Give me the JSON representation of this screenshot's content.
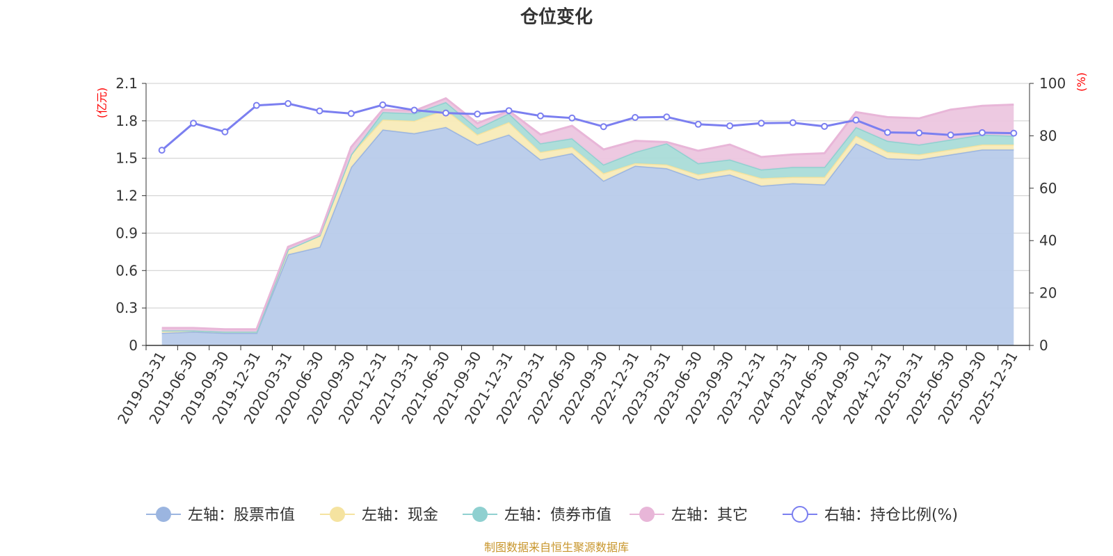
{
  "chart_data": {
    "type": "area",
    "title": "仓位变化",
    "left_unit": "(亿元)",
    "right_unit": "(%)",
    "left_axis": {
      "min": 0,
      "max": 2.1,
      "ticks": [
        "0",
        "0.3",
        "0.6",
        "0.9",
        "1.2",
        "1.5",
        "1.8",
        "2.1"
      ]
    },
    "right_axis": {
      "min": 0,
      "max": 100,
      "ticks": [
        "0",
        "20",
        "40",
        "60",
        "80",
        "100"
      ]
    },
    "grid": true,
    "stacked": true,
    "categories": [
      "2019-03-31",
      "2019-06-30",
      "2019-09-30",
      "2019-12-31",
      "2020-03-31",
      "2020-06-30",
      "2020-09-30",
      "2020-12-31",
      "2021-03-31",
      "2021-06-30",
      "2021-09-30",
      "2021-12-31",
      "2022-03-31",
      "2022-06-30",
      "2022-09-30",
      "2022-12-31",
      "2023-03-31",
      "2023-06-30",
      "2023-09-30",
      "2023-12-31",
      "2024-03-31",
      "2024-06-30",
      "2024-09-30",
      "2024-12-31",
      "2025-03-31",
      "2025-06-30",
      "2025-09-30",
      "2025-12-31"
    ],
    "series": [
      {
        "name": "左轴：股票市值",
        "axis": "left",
        "color": "#9bb5e0",
        "fill": "#b8cbea",
        "values": [
          0.1,
          0.11,
          0.1,
          0.1,
          0.73,
          0.79,
          1.43,
          1.73,
          1.7,
          1.75,
          1.61,
          1.69,
          1.49,
          1.54,
          1.32,
          1.44,
          1.42,
          1.33,
          1.37,
          1.28,
          1.3,
          1.29,
          1.62,
          1.5,
          1.49,
          1.53,
          1.57,
          1.57
        ]
      },
      {
        "name": "左轴：现金",
        "axis": "left",
        "color": "#f5e3a0",
        "fill": "#f8ebb8",
        "values": [
          0.02,
          0.01,
          0.01,
          0.01,
          0.04,
          0.09,
          0.1,
          0.08,
          0.1,
          0.14,
          0.08,
          0.1,
          0.06,
          0.05,
          0.06,
          0.02,
          0.03,
          0.04,
          0.04,
          0.06,
          0.05,
          0.06,
          0.06,
          0.05,
          0.04,
          0.04,
          0.04,
          0.04
        ]
      },
      {
        "name": "左轴：债券市值",
        "axis": "left",
        "color": "#8fd0d0",
        "fill": "#aadcd8",
        "values": [
          0,
          0,
          0,
          0,
          0,
          0,
          0,
          0.06,
          0.06,
          0.06,
          0.05,
          0.07,
          0.07,
          0.07,
          0.07,
          0.09,
          0.17,
          0.09,
          0.08,
          0.07,
          0.08,
          0.08,
          0.07,
          0.09,
          0.08,
          0.08,
          0.08,
          0.07
        ]
      },
      {
        "name": "左轴：其它",
        "axis": "left",
        "color": "#e8b6d8",
        "fill": "#ecc6df",
        "values": [
          0.02,
          0.02,
          0.02,
          0.02,
          0.02,
          0.01,
          0.06,
          0.02,
          0.02,
          0.03,
          0.04,
          0.02,
          0.07,
          0.1,
          0.12,
          0.09,
          0.01,
          0.1,
          0.12,
          0.1,
          0.1,
          0.11,
          0.12,
          0.19,
          0.21,
          0.24,
          0.23,
          0.25
        ]
      },
      {
        "name": "右轴：持仓比例(%)",
        "axis": "right",
        "type": "line",
        "color": "#7b7ff0",
        "values": [
          74.5,
          84.8,
          81.5,
          91.6,
          92.3,
          89.5,
          88.5,
          91.8,
          89.8,
          88.7,
          88.3,
          89.6,
          87.6,
          86.8,
          83.5,
          87.0,
          87.2,
          84.4,
          83.8,
          84.8,
          85.0,
          83.6,
          86.0,
          81.3,
          81.1,
          80.3,
          81.2,
          81.0
        ]
      }
    ],
    "legend_position": "bottom"
  },
  "legend": [
    {
      "label": "左轴：股票市值",
      "marker": "filled-circle",
      "color": "#9bb5e0"
    },
    {
      "label": "左轴：现金",
      "marker": "filled-circle",
      "color": "#f5e3a0"
    },
    {
      "label": "左轴：债券市值",
      "marker": "filled-circle",
      "color": "#8fd0d0"
    },
    {
      "label": "左轴：其它",
      "marker": "filled-circle",
      "color": "#e8b6d8"
    },
    {
      "label": "右轴：持仓比例(%)",
      "marker": "hollow-circle",
      "color": "#7b7ff0"
    }
  ],
  "source": "制图数据来自恒生聚源数据库"
}
